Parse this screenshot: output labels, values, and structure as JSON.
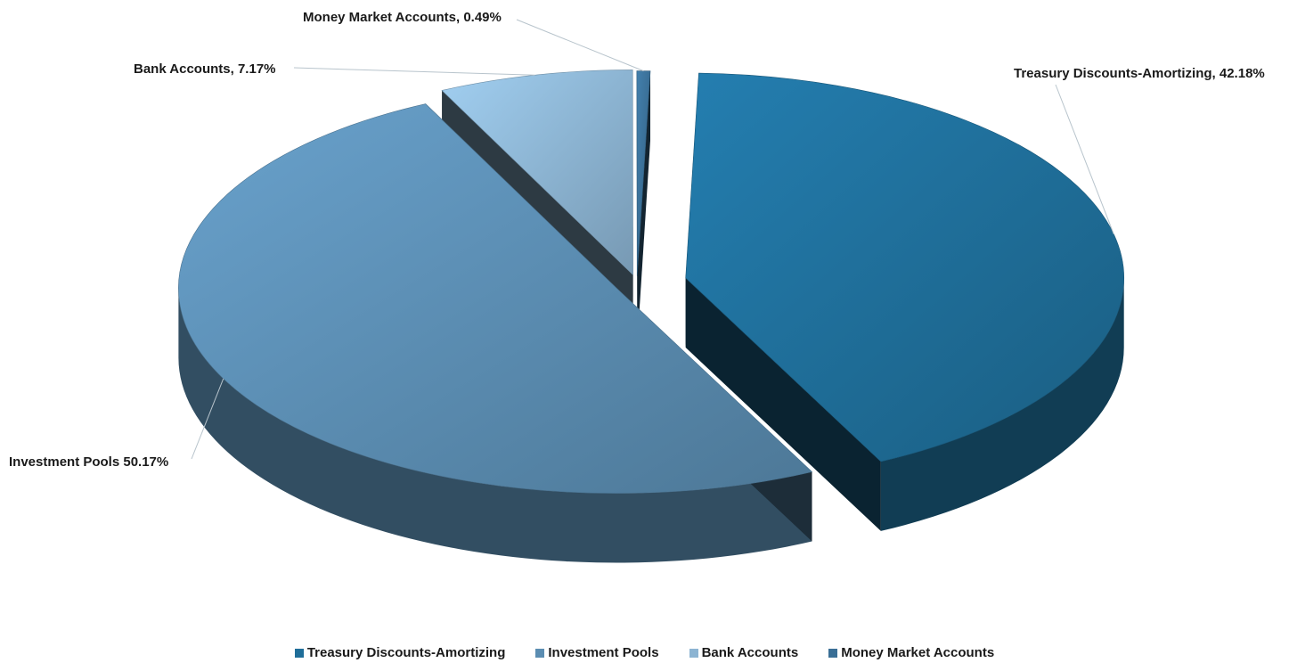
{
  "chart_data": {
    "type": "pie",
    "style": "3d-exploded",
    "slices": [
      {
        "name": "Treasury Discounts-Amortizing",
        "value": 42.18,
        "label": "Treasury Discounts-Amortizing, 42.18%",
        "color": "#1f6e99"
      },
      {
        "name": "Investment Pools",
        "value": 50.17,
        "label": "Investment Pools 50.17%",
        "color": "#5b8db2"
      },
      {
        "name": "Bank Accounts",
        "value": 7.17,
        "label": "Bank Accounts, 7.17%",
        "color": "#8cb4d2"
      },
      {
        "name": "Money Market Accounts",
        "value": 0.49,
        "label": "Money Market Accounts, 0.49%",
        "color": "#3a6f96"
      }
    ],
    "legend": {
      "position": "bottom",
      "items": [
        "Treasury Discounts-Amortizing",
        "Investment Pools",
        "Bank Accounts",
        "Money Market Accounts"
      ]
    }
  }
}
